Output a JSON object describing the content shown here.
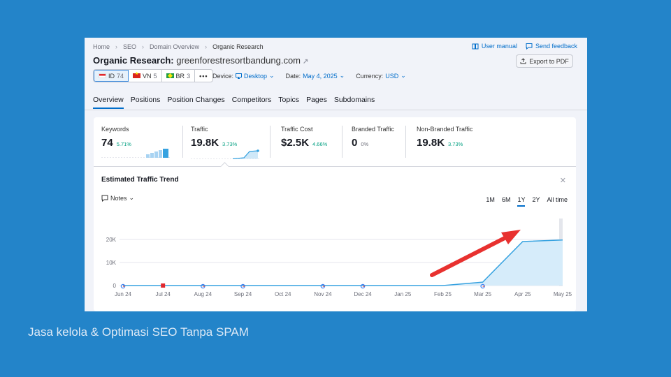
{
  "breadcrumb": [
    "Home",
    "SEO",
    "Domain Overview",
    "Organic Research"
  ],
  "toplinks": {
    "user_manual": "User manual",
    "send_feedback": "Send feedback"
  },
  "title": {
    "label": "Organic Research:",
    "domain": "greenforestresortbandung.com"
  },
  "export_label": "Export to PDF",
  "databases": [
    {
      "code": "ID",
      "count": "74",
      "flag": "indonesia-flag-icon",
      "selected": true
    },
    {
      "code": "VN",
      "count": "5",
      "flag": "vietnam-flag-icon",
      "selected": false
    },
    {
      "code": "BR",
      "count": "3",
      "flag": "brazil-flag-icon",
      "selected": false
    }
  ],
  "more_label": "•••",
  "filters": {
    "device": {
      "label": "Device:",
      "value": "Desktop"
    },
    "date": {
      "label": "Date:",
      "value": "May 4, 2025"
    },
    "currency": {
      "label": "Currency:",
      "value": "USD"
    }
  },
  "tabs": [
    "Overview",
    "Positions",
    "Position Changes",
    "Competitors",
    "Topics",
    "Pages",
    "Subdomains"
  ],
  "active_tab": "Overview",
  "metrics": [
    {
      "label": "Keywords",
      "value": "74",
      "change": "5.71%"
    },
    {
      "label": "Traffic",
      "value": "19.8K",
      "change": "3.73%"
    },
    {
      "label": "Traffic Cost",
      "value": "$2.5K",
      "change": "4.66%"
    },
    {
      "label": "Branded Traffic",
      "value": "0",
      "change": "0%"
    },
    {
      "label": "Non-Branded Traffic",
      "value": "19.8K",
      "change": "3.73%"
    }
  ],
  "trend": {
    "title": "Estimated Traffic Trend",
    "notes_label": "Notes",
    "ranges": [
      "1M",
      "6M",
      "1Y",
      "2Y",
      "All time"
    ],
    "active_range": "1Y"
  },
  "chart_data": {
    "type": "area",
    "title": "",
    "xlabel": "",
    "ylabel": "",
    "categories": [
      "Jun 24",
      "Jul 24",
      "Aug 24",
      "Sep 24",
      "Oct 24",
      "Nov 24",
      "Dec 24",
      "Jan 25",
      "Feb 25",
      "Mar 25",
      "Apr 25",
      "May 25"
    ],
    "yticks": [
      "0",
      "10K",
      "20K"
    ],
    "ylim": [
      0,
      20000
    ],
    "series": [
      {
        "values": [
          0,
          0,
          0,
          0,
          0,
          0,
          0,
          0,
          0,
          1500,
          19100,
          19800
        ]
      }
    ],
    "grid": true,
    "color": "#36a2e0",
    "markers": [
      {
        "x": "Jun 24",
        "type": "google-update"
      },
      {
        "x": "Jul 24",
        "type": "note-flag"
      },
      {
        "x": "Aug 24",
        "type": "google-update"
      },
      {
        "x": "Sep 24",
        "type": "google-update"
      },
      {
        "x": "Nov 24",
        "type": "google-update"
      },
      {
        "x": "Dec 24",
        "type": "google-update"
      },
      {
        "x": "Mar 25",
        "type": "google-update"
      }
    ]
  },
  "caption": "Jasa kelola & Optimasi SEO Tanpa SPAM"
}
